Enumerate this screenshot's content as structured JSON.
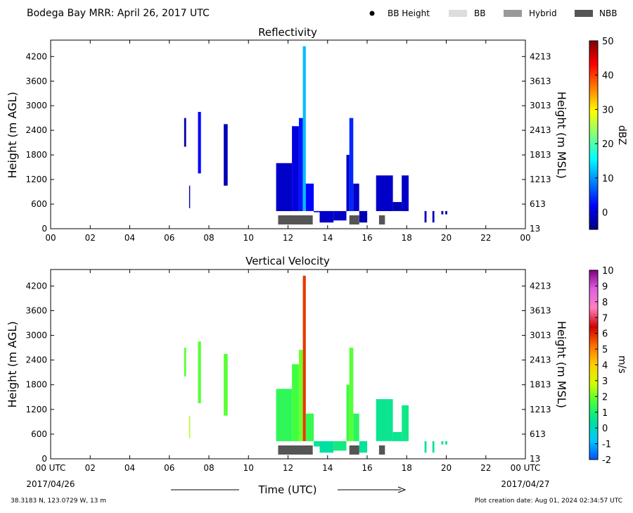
{
  "header": {
    "title": "Bodega Bay MRR:  April 26, 2017 UTC",
    "legend": [
      {
        "label": "BB Height",
        "kind": "dot",
        "color": "#000000"
      },
      {
        "label": "BB",
        "kind": "patch",
        "color": "#dddddd"
      },
      {
        "label": "Hybrid",
        "kind": "patch",
        "color": "#999999"
      },
      {
        "label": "NBB",
        "kind": "patch",
        "color": "#555555"
      }
    ]
  },
  "footer": {
    "location": "38.3183 N, 123.0729 W, 13 m",
    "creation": "Plot creation date: Aug 01, 2024 02:34:57 UTC",
    "xlabel": "Time (UTC)",
    "start_date": "2017/04/26",
    "end_date": "2017/04/27"
  },
  "colors": {
    "nbb_bar": "#555555"
  },
  "chart_data": [
    {
      "type": "heatmap",
      "title": "Reflectivity",
      "ylabel": "Height (m AGL)",
      "ylabel_right": "Height (m MSL)",
      "cbar_label": "dBZ",
      "xlim": [
        0,
        24
      ],
      "ylim": [
        0,
        4600
      ],
      "x_ticks": [
        "00",
        "02",
        "04",
        "06",
        "08",
        "10",
        "12",
        "14",
        "16",
        "18",
        "20",
        "22",
        "00"
      ],
      "y_ticks": [
        0,
        600,
        1200,
        1800,
        2400,
        3000,
        3600,
        4200
      ],
      "y_ticks_right": [
        "13",
        "613",
        "1213",
        "1813",
        "2413",
        "3013",
        "3613",
        "4213"
      ],
      "cbar_range": [
        -5,
        50
      ],
      "cbar_ticks": [
        "0",
        "10",
        "20",
        "30",
        "40",
        "50"
      ],
      "cbar_tick_values": [
        0,
        10,
        20,
        30,
        40,
        50
      ],
      "colormap": [
        "#00007f",
        "#0000ff",
        "#007fff",
        "#00ffff",
        "#7fff7f",
        "#ffff00",
        "#ff7f00",
        "#ff0000",
        "#7f0000"
      ],
      "echo_columns": [
        {
          "start": 6.75,
          "end": 6.85,
          "top": 2700,
          "bottom": 2000,
          "value": -3
        },
        {
          "start": 7.0,
          "end": 7.05,
          "top": 1050,
          "bottom": 500,
          "value": -3
        },
        {
          "start": 7.45,
          "end": 7.6,
          "top": 2850,
          "bottom": 1350,
          "value": 2
        },
        {
          "start": 8.75,
          "end": 8.95,
          "top": 2550,
          "bottom": 1050,
          "value": -2
        },
        {
          "start": 11.4,
          "end": 12.2,
          "top": 1600,
          "bottom": 430,
          "value": -1
        },
        {
          "start": 12.2,
          "end": 12.55,
          "top": 2500,
          "bottom": 430,
          "value": 0
        },
        {
          "start": 12.55,
          "end": 12.75,
          "top": 2700,
          "bottom": 430,
          "value": 3
        },
        {
          "start": 12.75,
          "end": 12.9,
          "top": 4450,
          "bottom": 430,
          "value": 12
        },
        {
          "start": 12.9,
          "end": 13.3,
          "top": 1100,
          "bottom": 430,
          "value": 2
        },
        {
          "start": 13.3,
          "end": 13.6,
          "top": 400,
          "bottom": 430,
          "value": 0
        },
        {
          "start": 13.6,
          "end": 14.3,
          "top": 150,
          "bottom": 430,
          "value": -1
        },
        {
          "start": 14.3,
          "end": 14.95,
          "top": 200,
          "bottom": 430,
          "value": -1
        },
        {
          "start": 14.95,
          "end": 15.1,
          "top": 1800,
          "bottom": 430,
          "value": -1
        },
        {
          "start": 15.1,
          "end": 15.3,
          "top": 2700,
          "bottom": 430,
          "value": 4
        },
        {
          "start": 15.3,
          "end": 15.6,
          "top": 1100,
          "bottom": 430,
          "value": -1
        },
        {
          "start": 15.6,
          "end": 16.0,
          "top": 150,
          "bottom": 430,
          "value": -2
        },
        {
          "start": 16.45,
          "end": 17.3,
          "top": 1300,
          "bottom": 430,
          "value": -1
        },
        {
          "start": 17.3,
          "end": 17.75,
          "top": 650,
          "bottom": 430,
          "value": -2
        },
        {
          "start": 17.75,
          "end": 18.1,
          "top": 1300,
          "bottom": 430,
          "value": -1
        },
        {
          "start": 18.9,
          "end": 19.0,
          "top": 150,
          "bottom": 430,
          "value": -2
        },
        {
          "start": 19.3,
          "end": 19.4,
          "top": 150,
          "bottom": 430,
          "value": -2
        },
        {
          "start": 19.75,
          "end": 19.85,
          "top": 350,
          "bottom": 430,
          "value": -2
        },
        {
          "start": 19.95,
          "end": 20.05,
          "top": 350,
          "bottom": 430,
          "value": -2
        }
      ],
      "nbb_periods": [
        [
          11.5,
          13.25
        ],
        [
          15.1,
          15.6
        ],
        [
          16.6,
          16.9
        ]
      ]
    },
    {
      "type": "heatmap",
      "title": "Vertical Velocity",
      "ylabel": "Height (m AGL)",
      "ylabel_right": "Height (m MSL)",
      "cbar_label": "m/s",
      "xlim": [
        0,
        24
      ],
      "ylim": [
        0,
        4600
      ],
      "x_ticks": [
        "00 UTC",
        "02",
        "04",
        "06",
        "08",
        "10",
        "12",
        "14",
        "16",
        "18",
        "20",
        "22",
        "00 UTC"
      ],
      "y_ticks": [
        0,
        600,
        1200,
        1800,
        2400,
        3000,
        3600,
        4200
      ],
      "y_ticks_right": [
        "13",
        "613",
        "1213",
        "1813",
        "2413",
        "3013",
        "3613",
        "4213"
      ],
      "cbar_range": [
        -2,
        10
      ],
      "cbar_ticks": [
        "-2",
        "-1",
        "0",
        "1",
        "2",
        "3",
        "4",
        "5",
        "6",
        "7",
        "8",
        "9",
        "10"
      ],
      "cbar_tick_values": [
        -2,
        -1,
        0,
        1,
        2,
        3,
        4,
        5,
        6,
        7,
        8,
        9,
        10
      ],
      "colormap": [
        "#0050ff",
        "#00c8ff",
        "#00e0a0",
        "#40ff40",
        "#d0ff00",
        "#ffd000",
        "#ff7000",
        "#d00000",
        "#ff80c0",
        "#e060e0",
        "#800080"
      ],
      "echo_columns": [
        {
          "start": 6.75,
          "end": 6.85,
          "top": 2700,
          "bottom": 2000,
          "value": 1.8
        },
        {
          "start": 7.0,
          "end": 7.05,
          "top": 1050,
          "bottom": 500,
          "value": 2.5
        },
        {
          "start": 7.45,
          "end": 7.6,
          "top": 2850,
          "bottom": 1350,
          "value": 1.8
        },
        {
          "start": 8.75,
          "end": 8.95,
          "top": 2550,
          "bottom": 1050,
          "value": 1.8
        },
        {
          "start": 11.4,
          "end": 12.2,
          "top": 1700,
          "bottom": 430,
          "value": 1.3
        },
        {
          "start": 12.2,
          "end": 12.55,
          "top": 2300,
          "bottom": 430,
          "value": 1.6
        },
        {
          "start": 12.55,
          "end": 12.75,
          "top": 2650,
          "bottom": 430,
          "value": 2.0
        },
        {
          "start": 12.75,
          "end": 12.9,
          "top": 4450,
          "bottom": 430,
          "value": 5.8
        },
        {
          "start": 12.9,
          "end": 13.3,
          "top": 1100,
          "bottom": 430,
          "value": 1.4
        },
        {
          "start": 13.3,
          "end": 13.6,
          "top": 300,
          "bottom": 430,
          "value": 0.6
        },
        {
          "start": 13.6,
          "end": 14.3,
          "top": 150,
          "bottom": 430,
          "value": 0.4
        },
        {
          "start": 14.3,
          "end": 14.95,
          "top": 200,
          "bottom": 430,
          "value": 0.8
        },
        {
          "start": 14.95,
          "end": 15.1,
          "top": 1800,
          "bottom": 430,
          "value": 1.5
        },
        {
          "start": 15.1,
          "end": 15.3,
          "top": 2700,
          "bottom": 430,
          "value": 1.8
        },
        {
          "start": 15.3,
          "end": 15.6,
          "top": 1100,
          "bottom": 430,
          "value": 1.2
        },
        {
          "start": 15.6,
          "end": 16.0,
          "top": 150,
          "bottom": 430,
          "value": 0.5
        },
        {
          "start": 16.45,
          "end": 17.3,
          "top": 1450,
          "bottom": 430,
          "value": 0.6
        },
        {
          "start": 17.3,
          "end": 17.75,
          "top": 650,
          "bottom": 430,
          "value": 0.6
        },
        {
          "start": 17.75,
          "end": 18.1,
          "top": 1300,
          "bottom": 430,
          "value": 0.7
        },
        {
          "start": 18.9,
          "end": 19.0,
          "top": 150,
          "bottom": 430,
          "value": 0.6
        },
        {
          "start": 19.3,
          "end": 19.4,
          "top": 150,
          "bottom": 430,
          "value": 0.6
        },
        {
          "start": 19.75,
          "end": 19.85,
          "top": 350,
          "bottom": 430,
          "value": 0.6
        },
        {
          "start": 19.95,
          "end": 20.05,
          "top": 350,
          "bottom": 430,
          "value": 0.6
        }
      ],
      "nbb_periods": [
        [
          11.5,
          13.25
        ],
        [
          15.1,
          15.6
        ],
        [
          16.6,
          16.9
        ]
      ]
    }
  ]
}
